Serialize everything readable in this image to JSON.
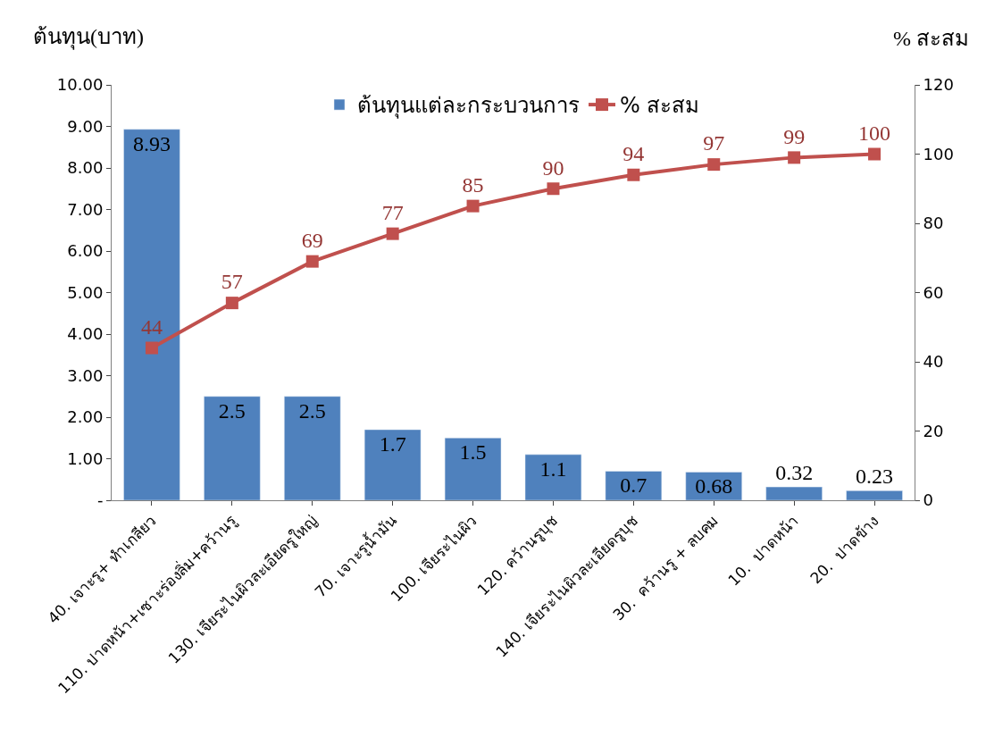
{
  "chart_data": {
    "type": "bar",
    "ylabel": "ต้นทุน(บาท)",
    "y2label": "% สะสม",
    "categories": [
      "40. เจาะรู+ ทำเกลียว",
      "110. ปาดหน้า+เซาะร่องลิ่ม+คว้านรู",
      "130. เจียระไนผิวละเอียดรูใหญ่",
      "70. เจาะรูน้ำมัน",
      "100. เจียระไนผิว",
      "120. คว้านรูบุช",
      "140. เจียระไนผิวละเอียดรูบุช",
      "30.  คว้านรู + ลบคม",
      "10.  ปาดหน้า",
      "20.  ปาดข้าง"
    ],
    "series": [
      {
        "name": "ต้นทุนแต่ละกระบวนการ",
        "color": "#4f81bd",
        "values": [
          8.93,
          2.5,
          2.5,
          1.7,
          1.5,
          1.1,
          0.7,
          0.68,
          0.32,
          0.23
        ]
      },
      {
        "name": "% สะสม",
        "type": "line",
        "axis": "y2",
        "color": "#c0504d",
        "marker": "square",
        "values": [
          44,
          57,
          69,
          77,
          85,
          90,
          94,
          97,
          99,
          100
        ]
      }
    ],
    "ylim": [
      0,
      10
    ],
    "yticks": [
      {
        "value": 0,
        "label": "-"
      },
      {
        "value": 1,
        "label": "1.00"
      },
      {
        "value": 2,
        "label": "2.00"
      },
      {
        "value": 3,
        "label": "3.00"
      },
      {
        "value": 4,
        "label": "4.00"
      },
      {
        "value": 5,
        "label": "5.00"
      },
      {
        "value": 6,
        "label": "6.00"
      },
      {
        "value": 7,
        "label": "7.00"
      },
      {
        "value": 8,
        "label": "8.00"
      },
      {
        "value": 9,
        "label": "9.00"
      },
      {
        "value": 10,
        "label": "10.00"
      }
    ],
    "y2lim": [
      0,
      120
    ],
    "y2ticks": [
      0,
      20,
      40,
      60,
      80,
      100,
      120
    ],
    "data_labels": true,
    "legend": "top"
  }
}
